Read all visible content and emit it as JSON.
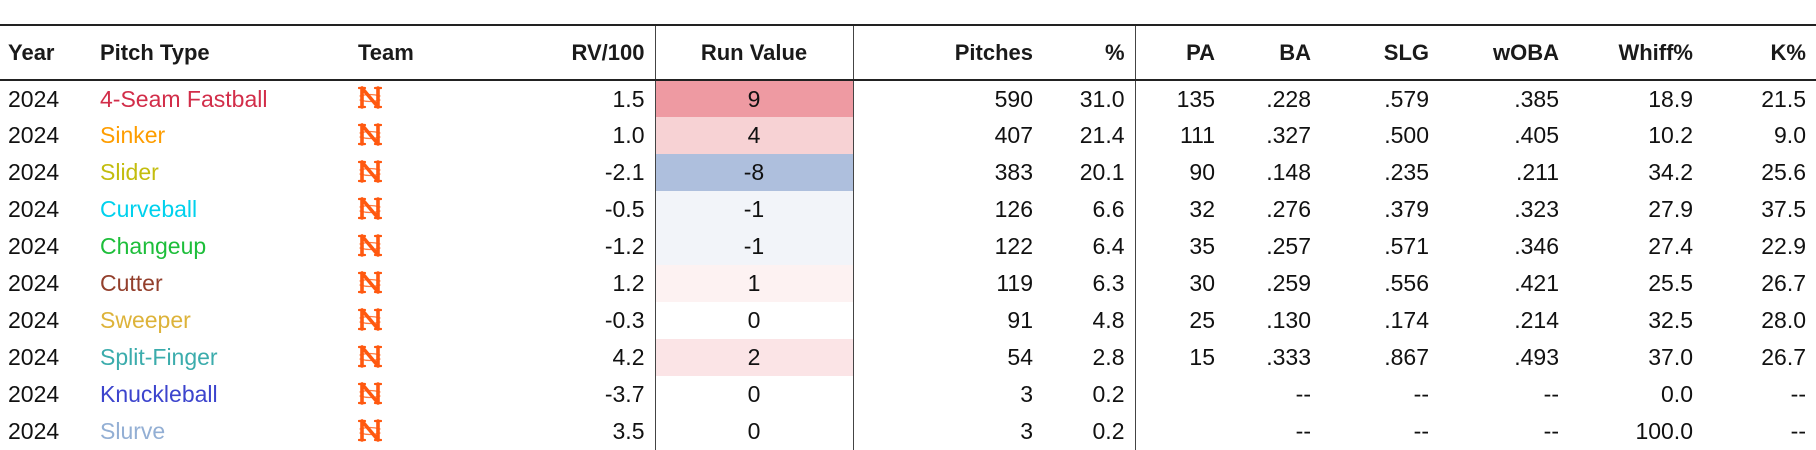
{
  "colors": {
    "team_logo": "#ff5910",
    "rv_positive_strong": "#ee9aa2",
    "rv_positive_medium": "#f7d2d4",
    "rv_positive_light": "#fbe4e6",
    "rv_positive_faint": "#fdf2f2",
    "rv_negative_strong": "#aebfdd",
    "rv_negative_faint": "#f2f4f9"
  },
  "headers": {
    "year": "Year",
    "pitch_type": "Pitch Type",
    "team": "Team",
    "rv100": "RV/100",
    "run_value": "Run Value",
    "pitches": "Pitches",
    "pct": "%",
    "pa": "PA",
    "ba": "BA",
    "slg": "SLG",
    "woba": "wOBA",
    "whiff": "Whiff%",
    "k": "K%"
  },
  "rows": [
    {
      "year": "2024",
      "pitch_type": "4-Seam Fastball",
      "pitch_color": "#d22d49",
      "team_icon": "mets-logo-icon",
      "rv100": "1.5",
      "run_value": "9",
      "rv_bg": "#ee9aa2",
      "pitches": "590",
      "pct": "31.0",
      "pa": "135",
      "ba": ".228",
      "slg": ".579",
      "woba": ".385",
      "whiff": "18.9",
      "k": "21.5"
    },
    {
      "year": "2024",
      "pitch_type": "Sinker",
      "pitch_color": "#fe9d00",
      "team_icon": "mets-logo-icon",
      "rv100": "1.0",
      "run_value": "4",
      "rv_bg": "#f7d2d4",
      "pitches": "407",
      "pct": "21.4",
      "pa": "111",
      "ba": ".327",
      "slg": ".500",
      "woba": ".405",
      "whiff": "10.2",
      "k": "9.0"
    },
    {
      "year": "2024",
      "pitch_type": "Slider",
      "pitch_color": "#c3bd0e",
      "team_icon": "mets-logo-icon",
      "rv100": "-2.1",
      "run_value": "-8",
      "rv_bg": "#aebfdd",
      "pitches": "383",
      "pct": "20.1",
      "pa": "90",
      "ba": ".148",
      "slg": ".235",
      "woba": ".211",
      "whiff": "34.2",
      "k": "25.6"
    },
    {
      "year": "2024",
      "pitch_type": "Curveball",
      "pitch_color": "#00d1ed",
      "team_icon": "mets-logo-icon",
      "rv100": "-0.5",
      "run_value": "-1",
      "rv_bg": "#f2f4f9",
      "pitches": "126",
      "pct": "6.6",
      "pa": "32",
      "ba": ".276",
      "slg": ".379",
      "woba": ".323",
      "whiff": "27.9",
      "k": "37.5"
    },
    {
      "year": "2024",
      "pitch_type": "Changeup",
      "pitch_color": "#1dbe3a",
      "team_icon": "mets-logo-icon",
      "rv100": "-1.2",
      "run_value": "-1",
      "rv_bg": "#f2f4f9",
      "pitches": "122",
      "pct": "6.4",
      "pa": "35",
      "ba": ".257",
      "slg": ".571",
      "woba": ".346",
      "whiff": "27.4",
      "k": "22.9"
    },
    {
      "year": "2024",
      "pitch_type": "Cutter",
      "pitch_color": "#933f2c",
      "team_icon": "mets-logo-icon",
      "rv100": "1.2",
      "run_value": "1",
      "rv_bg": "#fdf2f2",
      "pitches": "119",
      "pct": "6.3",
      "pa": "30",
      "ba": ".259",
      "slg": ".556",
      "woba": ".421",
      "whiff": "25.5",
      "k": "26.7"
    },
    {
      "year": "2024",
      "pitch_type": "Sweeper",
      "pitch_color": "#ddb33a",
      "team_icon": "mets-logo-icon",
      "rv100": "-0.3",
      "run_value": "0",
      "rv_bg": "#ffffff",
      "pitches": "91",
      "pct": "4.8",
      "pa": "25",
      "ba": ".130",
      "slg": ".174",
      "woba": ".214",
      "whiff": "32.5",
      "k": "28.0"
    },
    {
      "year": "2024",
      "pitch_type": "Split-Finger",
      "pitch_color": "#3bacac",
      "team_icon": "mets-logo-icon",
      "rv100": "4.2",
      "run_value": "2",
      "rv_bg": "#fbe4e6",
      "pitches": "54",
      "pct": "2.8",
      "pa": "15",
      "ba": ".333",
      "slg": ".867",
      "woba": ".493",
      "whiff": "37.0",
      "k": "26.7"
    },
    {
      "year": "2024",
      "pitch_type": "Knuckleball",
      "pitch_color": "#3c44cd",
      "team_icon": "mets-logo-icon",
      "rv100": "-3.7",
      "run_value": "0",
      "rv_bg": "#ffffff",
      "pitches": "3",
      "pct": "0.2",
      "pa": "",
      "ba": "--",
      "slg": "--",
      "woba": "--",
      "whiff": "0.0",
      "k": "--"
    },
    {
      "year": "2024",
      "pitch_type": "Slurve",
      "pitch_color": "#93afd4",
      "team_icon": "mets-logo-icon",
      "rv100": "3.5",
      "run_value": "0",
      "rv_bg": "#ffffff",
      "pitches": "3",
      "pct": "0.2",
      "pa": "",
      "ba": "--",
      "slg": "--",
      "woba": "--",
      "whiff": "100.0",
      "k": "--"
    }
  ]
}
